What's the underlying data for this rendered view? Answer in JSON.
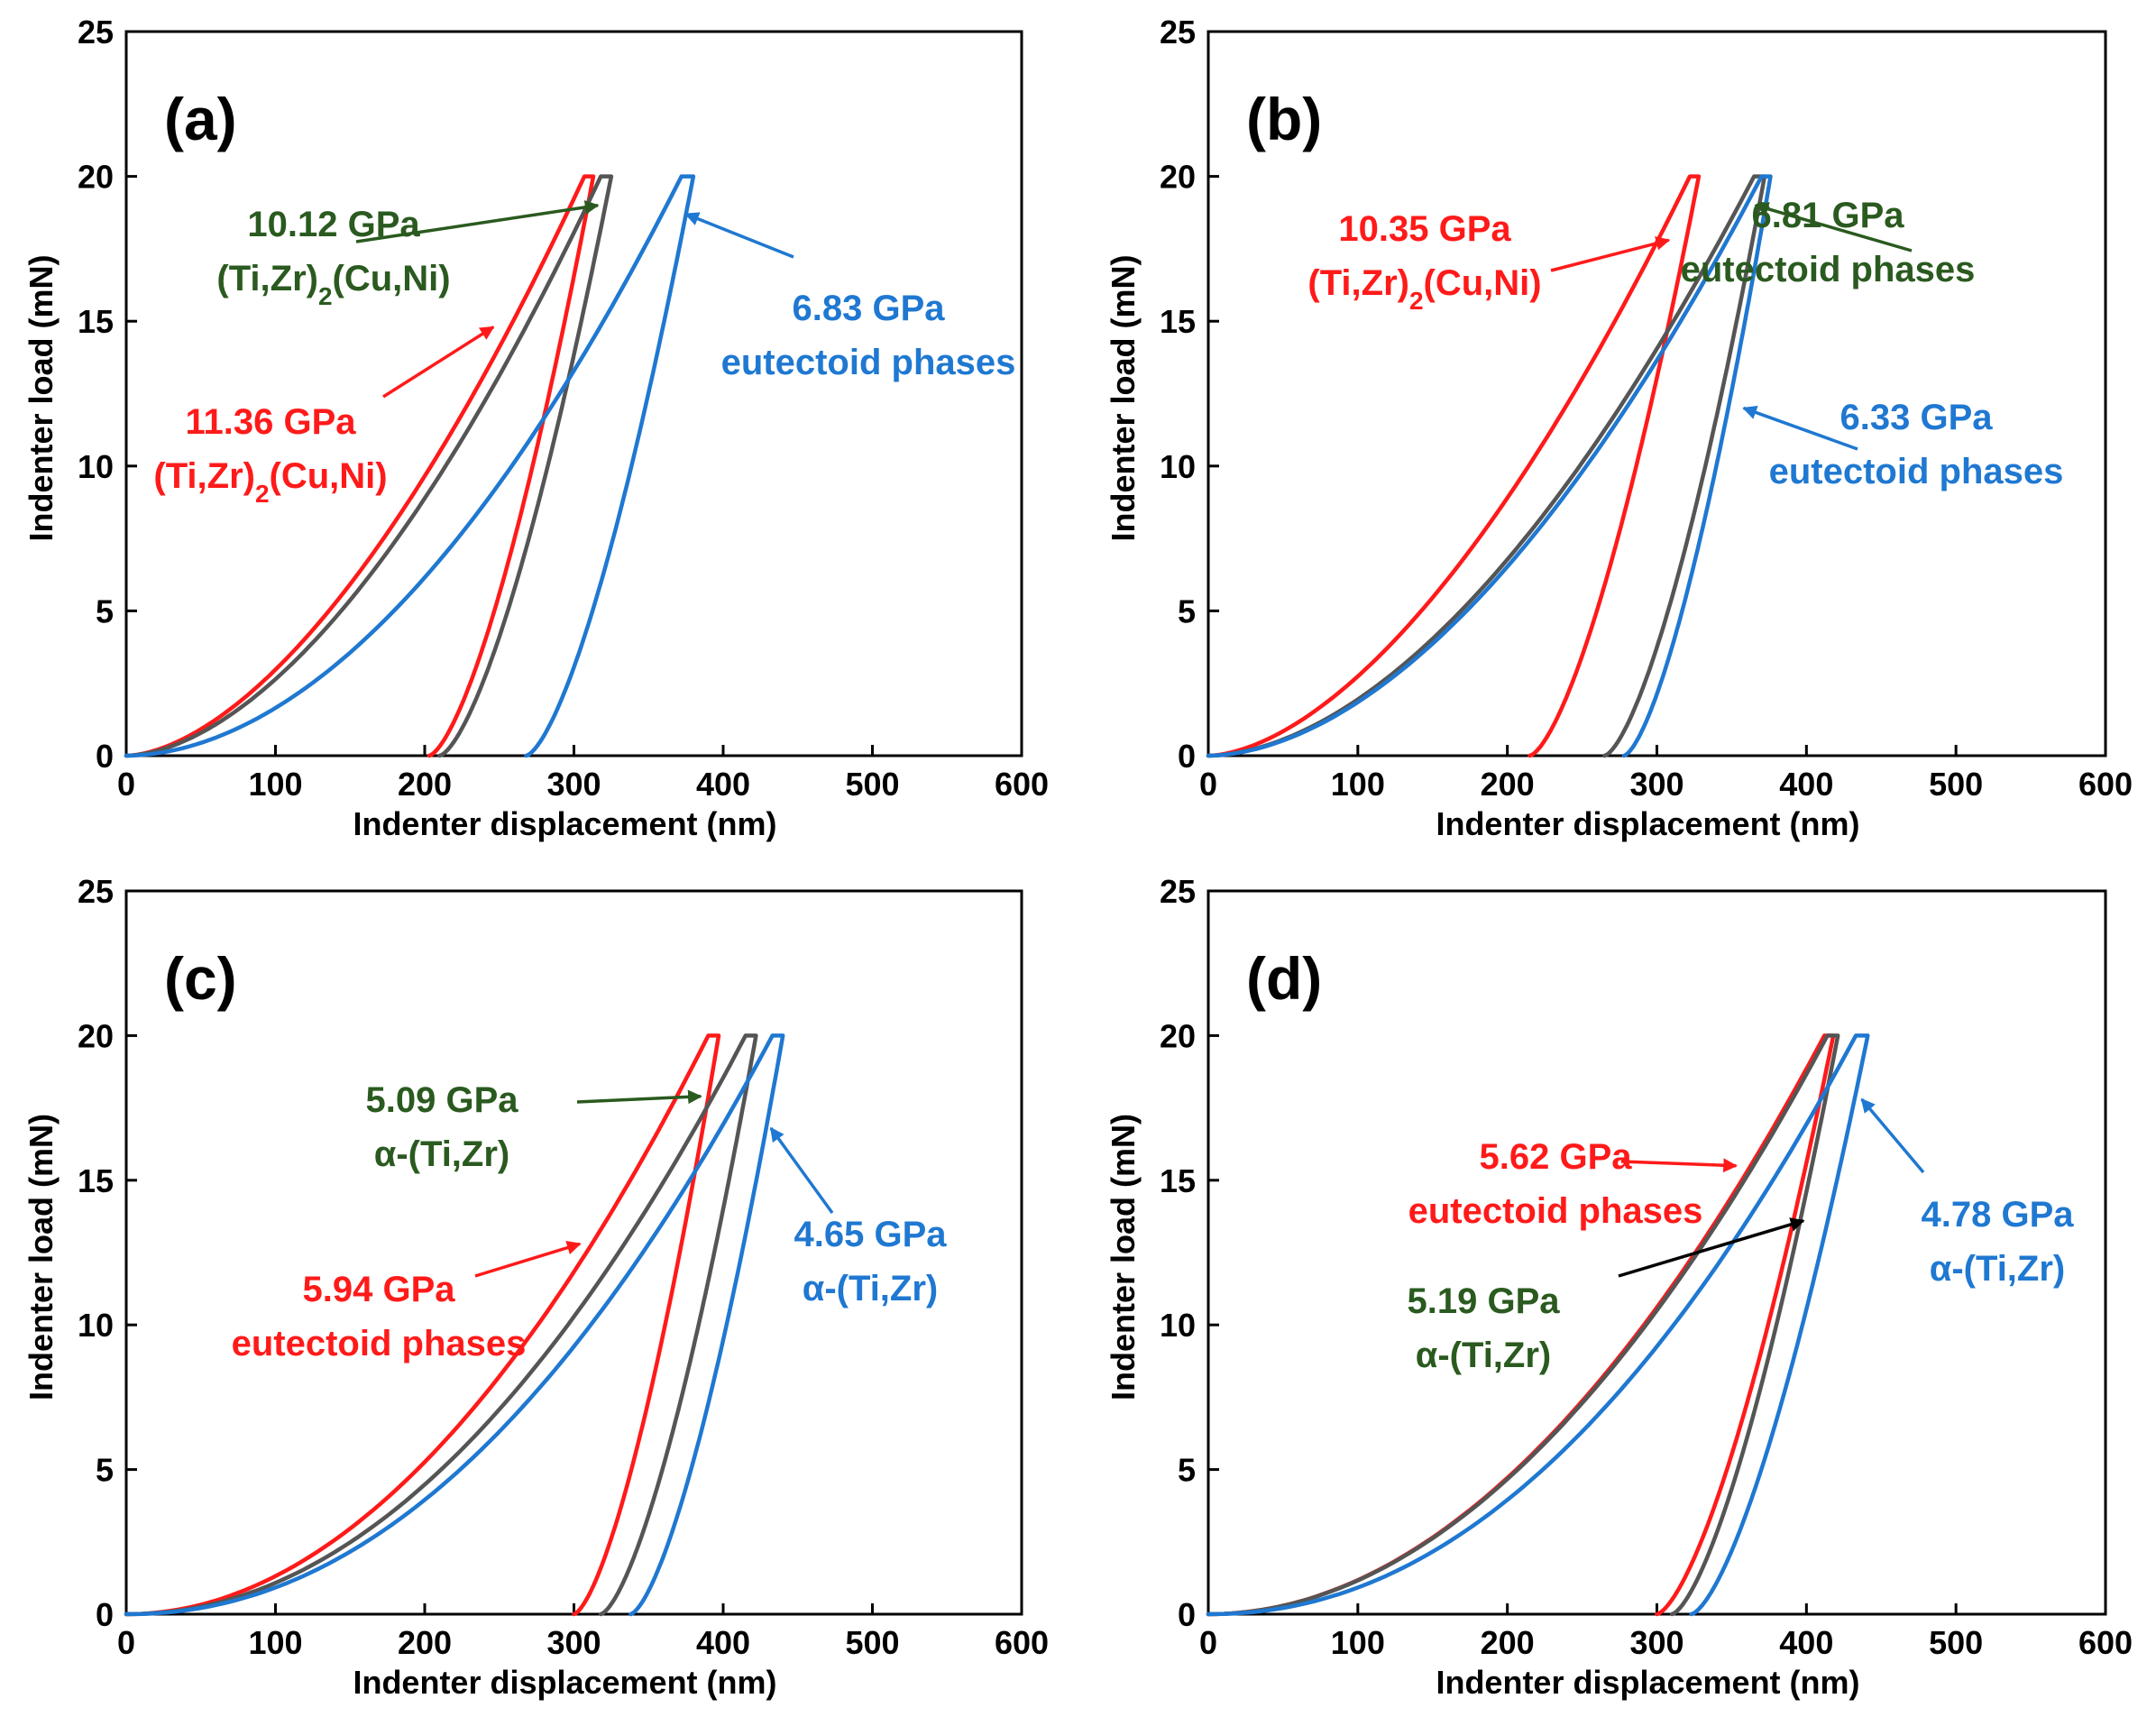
{
  "colors": {
    "red": "#ff1a1a",
    "gray": "#555555",
    "blue": "#1f78d1",
    "green": "#2a5a1f",
    "black": "#000000"
  },
  "chart_data": [
    {
      "id": "a",
      "type": "line",
      "panel_label": "(a)",
      "xlabel": "Indenter displacement (nm)",
      "ylabel": "Indenter load (mN)",
      "xlim": [
        0,
        600
      ],
      "ylim": [
        0,
        25
      ],
      "xticks": [
        0,
        100,
        200,
        300,
        400,
        500,
        600
      ],
      "yticks": [
        0,
        5,
        10,
        15,
        20,
        25
      ],
      "series": [
        {
          "name": "11.36 GPa (Ti,Zr)2(Cu,Ni)",
          "color": "red",
          "hmax": 307,
          "hplateau": 313,
          "hfinal": 203,
          "pmax": 20,
          "load_exp": 1.7,
          "unload_exp": 1.5
        },
        {
          "name": "10.12 GPa (Ti,Zr)2(Cu,Ni)",
          "color": "gray",
          "hmax": 318,
          "hplateau": 325,
          "hfinal": 210,
          "pmax": 20,
          "load_exp": 1.75,
          "unload_exp": 1.5
        },
        {
          "name": "6.83 GPa eutectoid phases",
          "color": "blue",
          "hmax": 372,
          "hplateau": 380,
          "hfinal": 268,
          "pmax": 20,
          "load_exp": 1.9,
          "unload_exp": 1.5
        }
      ],
      "annotations": [
        {
          "lines": [
            "10.12 GPa",
            "(Ti,Zr)2(Cu,Ni)"
          ],
          "color": "green",
          "arrow_to": [
            316,
            19
          ]
        },
        {
          "lines": [
            "6.83 GPa",
            "eutectoid phases"
          ],
          "color": "blue",
          "arrow_to": [
            375,
            18.7
          ]
        },
        {
          "lines": [
            "11.36 GPa",
            "(Ti,Zr)2(Cu,Ni)"
          ],
          "color": "red",
          "arrow_to": [
            246,
            14.8
          ]
        }
      ]
    },
    {
      "id": "b",
      "type": "line",
      "panel_label": "(b)",
      "xlabel": "Indenter displacement (nm)",
      "ylabel": "Indenter load (mN)",
      "xlim": [
        0,
        600
      ],
      "ylim": [
        0,
        25
      ],
      "xticks": [
        0,
        100,
        200,
        300,
        400,
        500,
        600
      ],
      "yticks": [
        0,
        5,
        10,
        15,
        20,
        25
      ],
      "series": [
        {
          "name": "10.35 GPa (Ti,Zr)2(Cu,Ni)",
          "color": "red",
          "hmax": 322,
          "hplateau": 328,
          "hfinal": 215,
          "pmax": 20,
          "load_exp": 1.7,
          "unload_exp": 1.5
        },
        {
          "name": "6.81 GPa eutectoid phases",
          "color": "gray",
          "hmax": 365,
          "hplateau": 372,
          "hfinal": 265,
          "pmax": 20,
          "load_exp": 1.8,
          "unload_exp": 1.5
        },
        {
          "name": "6.33 GPa eutectoid phases",
          "color": "blue",
          "hmax": 370,
          "hplateau": 376,
          "hfinal": 278,
          "pmax": 20,
          "load_exp": 1.82,
          "unload_exp": 1.5
        }
      ],
      "annotations": [
        {
          "lines": [
            "10.35 GPa",
            "(Ti,Zr)2(Cu,Ni)"
          ],
          "color": "red",
          "arrow_to": [
            308,
            17.8
          ]
        },
        {
          "lines": [
            "6.81 GPa",
            "eutectoid phases"
          ],
          "color": "green",
          "arrow_to": [
            366,
            19
          ]
        },
        {
          "lines": [
            "6.33 GPa",
            "eutectoid phases"
          ],
          "color": "blue",
          "arrow_to": [
            358,
            12
          ]
        }
      ]
    },
    {
      "id": "c",
      "type": "line",
      "panel_label": "(c)",
      "xlabel": "Indenter displacement (nm)",
      "ylabel": "Indenter load (mN)",
      "xlim": [
        0,
        600
      ],
      "ylim": [
        0,
        25
      ],
      "xticks": [
        0,
        100,
        200,
        300,
        400,
        500,
        600
      ],
      "yticks": [
        0,
        5,
        10,
        15,
        20,
        25
      ],
      "series": [
        {
          "name": "5.94 GPa eutectoid phases",
          "color": "red",
          "hmax": 390,
          "hplateau": 397,
          "hfinal": 300,
          "pmax": 20,
          "load_exp": 2.0,
          "unload_exp": 1.5
        },
        {
          "name": "5.09 GPa α-(Ti,Zr)",
          "color": "gray",
          "hmax": 415,
          "hplateau": 422,
          "hfinal": 318,
          "pmax": 20,
          "load_exp": 2.05,
          "unload_exp": 1.5
        },
        {
          "name": "4.65 GPa α-(Ti,Zr)",
          "color": "blue",
          "hmax": 433,
          "hplateau": 440,
          "hfinal": 338,
          "pmax": 20,
          "load_exp": 2.1,
          "unload_exp": 1.5
        }
      ],
      "annotations": [
        {
          "lines": [
            "5.09 GPa",
            "α-(Ti,Zr)"
          ],
          "color": "green",
          "arrow_to": [
            385,
            17.9
          ]
        },
        {
          "lines": [
            "4.65 GPa",
            "α-(Ti,Zr)"
          ],
          "color": "blue",
          "arrow_to": [
            432,
            16.8
          ]
        },
        {
          "lines": [
            "5.94 GPa",
            "eutectoid phases"
          ],
          "color": "red",
          "arrow_to": [
            304,
            12.8
          ]
        }
      ]
    },
    {
      "id": "d",
      "type": "line",
      "panel_label": "(d)",
      "xlabel": "Indenter displacement (nm)",
      "ylabel": "Indenter load (mN)",
      "xlim": [
        0,
        600
      ],
      "ylim": [
        0,
        25
      ],
      "xticks": [
        0,
        100,
        200,
        300,
        400,
        500,
        600
      ],
      "yticks": [
        0,
        5,
        10,
        15,
        20,
        25
      ],
      "series": [
        {
          "name": "5.62 GPa eutectoid phases",
          "color": "red",
          "hmax": 412,
          "hplateau": 418,
          "hfinal": 300,
          "pmax": 20,
          "load_exp": 2.0,
          "unload_exp": 1.5
        },
        {
          "name": "5.19 GPa α-(Ti,Zr)",
          "color": "gray",
          "hmax": 414,
          "hplateau": 421,
          "hfinal": 310,
          "pmax": 20,
          "load_exp": 2.0,
          "unload_exp": 1.5
        },
        {
          "name": "4.78 GPa α-(Ti,Zr)",
          "color": "blue",
          "hmax": 433,
          "hplateau": 441,
          "hfinal": 323,
          "pmax": 20,
          "load_exp": 2.1,
          "unload_exp": 1.5
        }
      ],
      "annotations": [
        {
          "lines": [
            "5.62 GPa",
            "eutectoid phases"
          ],
          "color": "red",
          "arrow_to": [
            353,
            15.5
          ]
        },
        {
          "lines": [
            "5.19 GPa",
            "α-(Ti,Zr)"
          ],
          "color": "green",
          "arrow_to": [
            398,
            13.6
          ],
          "arrow_color": "black"
        },
        {
          "lines": [
            "4.78 GPa",
            "α-(Ti,Zr)"
          ],
          "color": "blue",
          "arrow_to": [
            437,
            17.8
          ]
        }
      ]
    }
  ]
}
